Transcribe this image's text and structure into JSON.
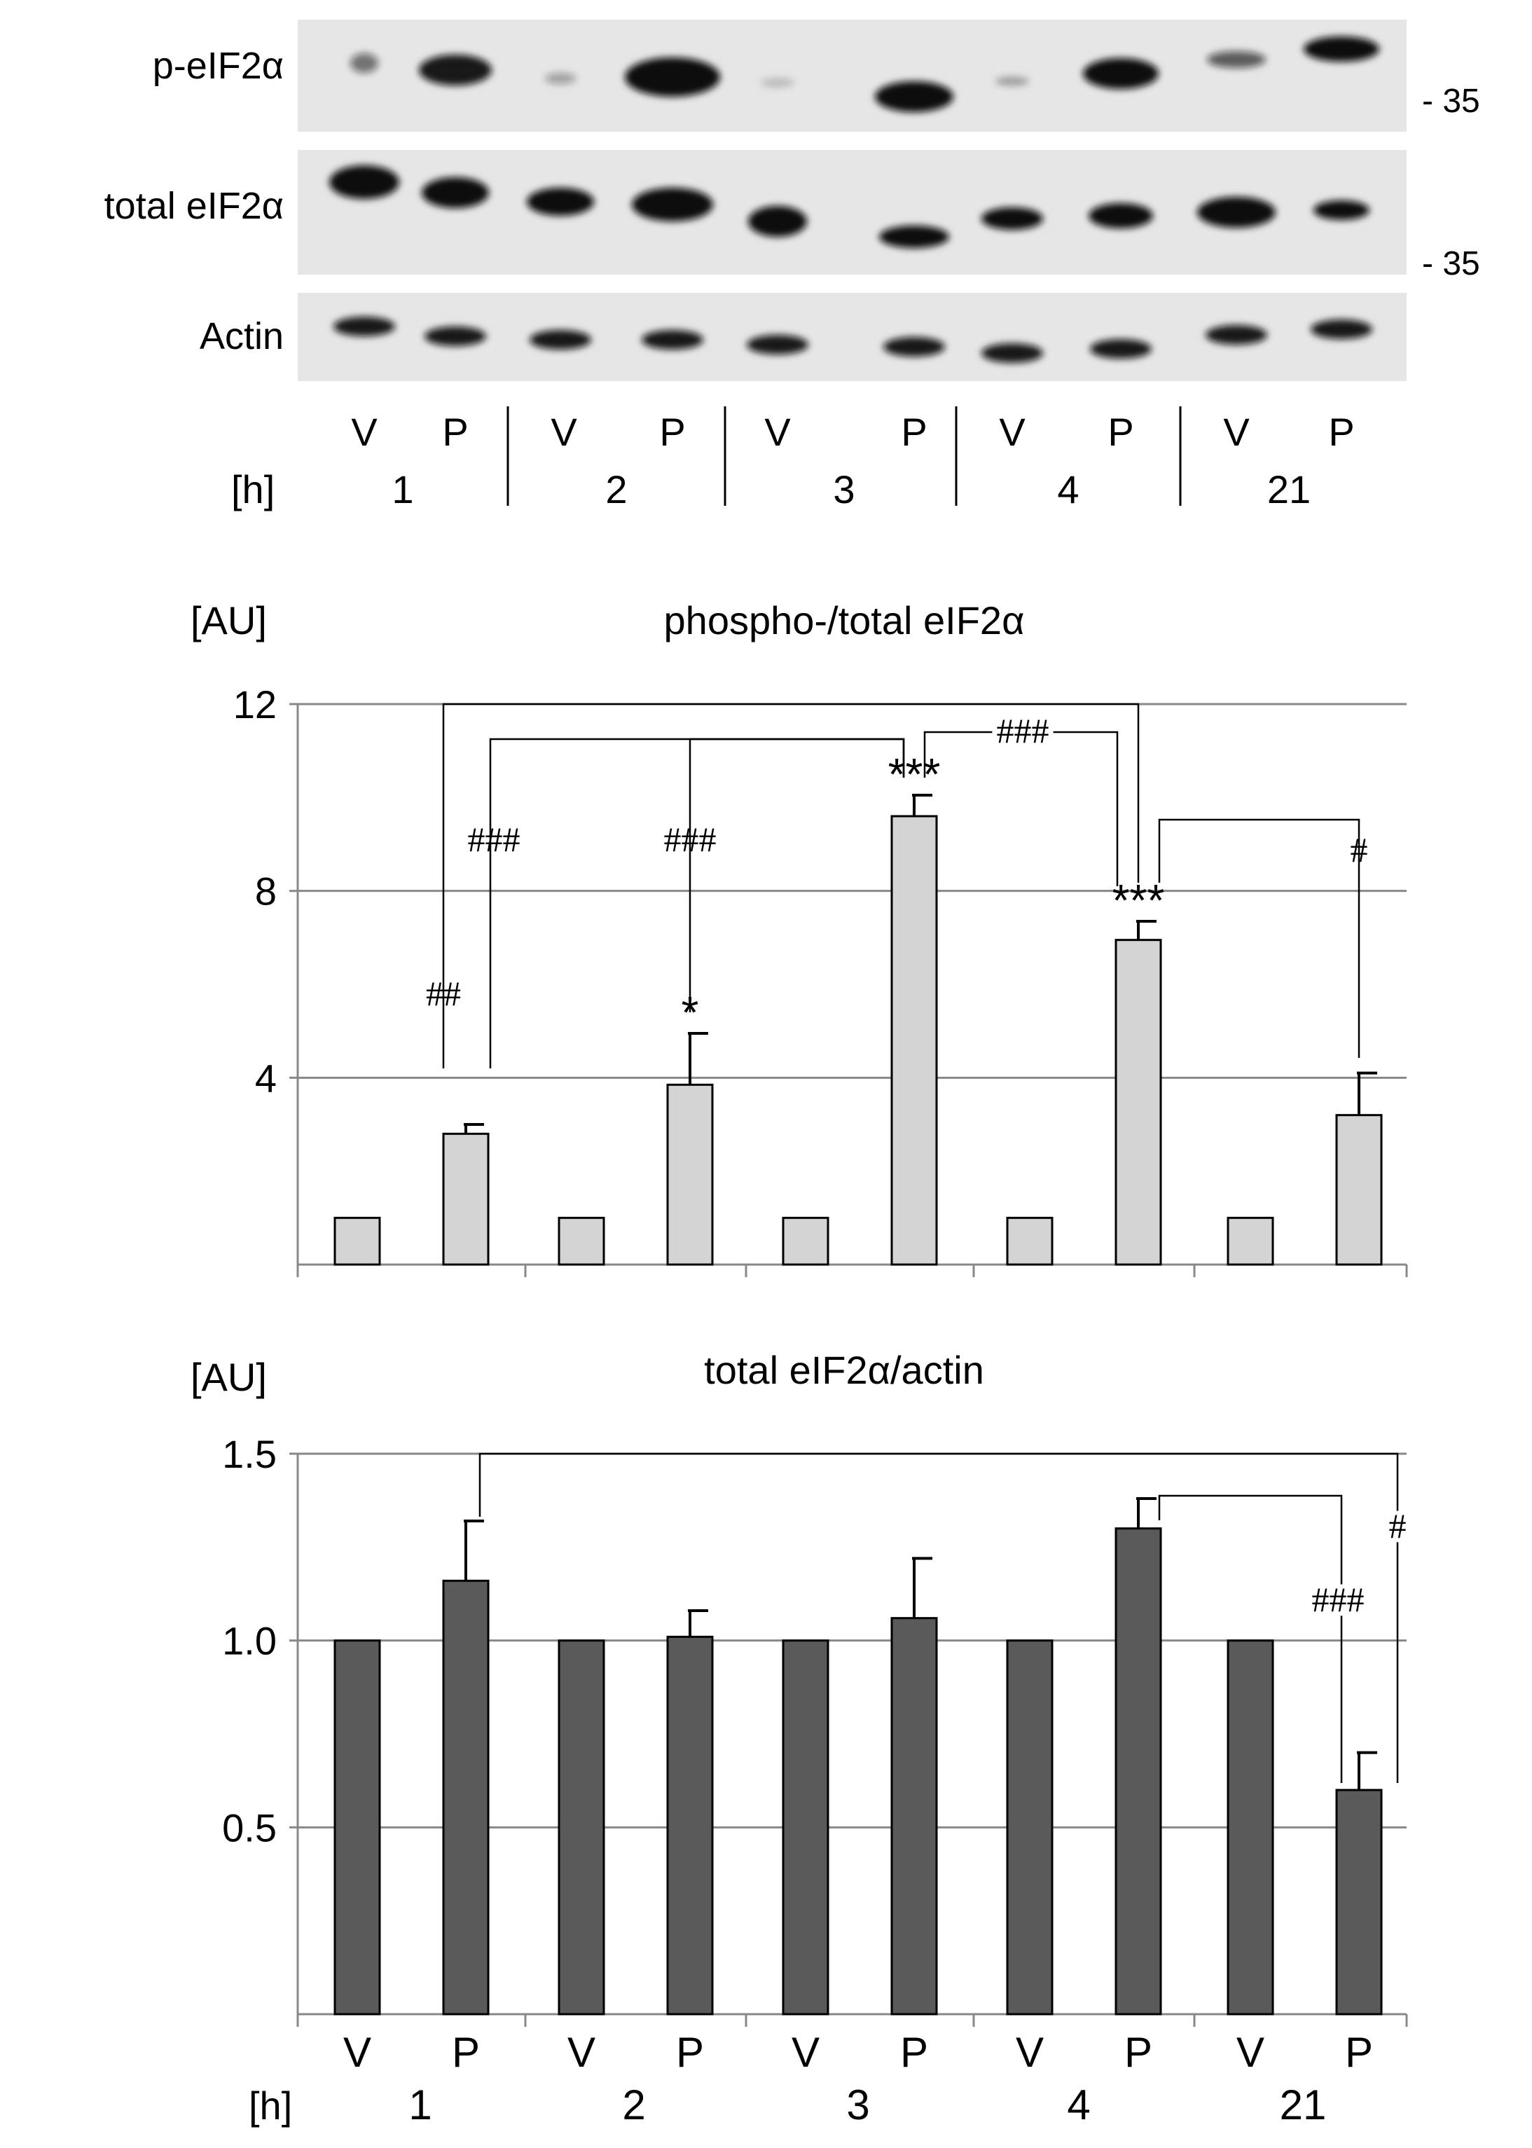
{
  "blot": {
    "rows": [
      {
        "label": "p-eIF2α",
        "marker": "- 35"
      },
      {
        "label": "total eIF2α",
        "marker": "- 35"
      },
      {
        "label": "Actin",
        "marker": ""
      }
    ],
    "conditions": [
      "V",
      "P",
      "V",
      "P",
      "V",
      "P",
      "V",
      "P",
      "V",
      "P"
    ],
    "time_unit": "[h]",
    "timepoints": [
      "1",
      "2",
      "3",
      "4",
      "21"
    ]
  },
  "chart_data": [
    {
      "type": "bar",
      "title": "phospho-/total eIF2α",
      "ylabel": "[AU]",
      "ylim": [
        0,
        12
      ],
      "yticks": [
        "4",
        "8",
        "12"
      ],
      "ytick_values": [
        4,
        8,
        12
      ],
      "grid": true,
      "bar_color": "#d4d4d4",
      "categories": [
        "V",
        "P",
        "V",
        "P",
        "V",
        "P",
        "V",
        "P",
        "V",
        "P"
      ],
      "values": [
        1.0,
        2.8,
        1.0,
        3.85,
        1.0,
        9.6,
        1.0,
        6.95,
        1.0,
        3.2
      ],
      "errors": [
        0,
        0.2,
        0,
        1.1,
        0,
        0.45,
        0,
        0.4,
        0,
        0.9
      ],
      "annotations": [
        {
          "bar": 3,
          "text": "*"
        },
        {
          "bar": 5,
          "text": "***"
        },
        {
          "bar": 7,
          "text": "***"
        }
      ],
      "brackets": [
        {
          "from": 0,
          "to": 7,
          "label": "##",
          "label_at": "from"
        },
        {
          "from": 1,
          "to": 5,
          "label": "###",
          "label_at": "from"
        },
        {
          "from": 3,
          "to": 5,
          "label": "###",
          "label_at": "from"
        },
        {
          "from": 5,
          "to": 7,
          "label": "###",
          "label_at": "middle"
        },
        {
          "from": 7,
          "to": 9,
          "label": "#",
          "label_at": "to"
        }
      ]
    },
    {
      "type": "bar",
      "title": "total eIF2α/actin",
      "ylabel": "[AU]",
      "ylim": [
        0,
        1.5
      ],
      "yticks": [
        "0.5",
        "1.0",
        "1.5"
      ],
      "ytick_values": [
        0.5,
        1.0,
        1.5
      ],
      "grid": true,
      "bar_color": "#5a5a5a",
      "categories": [
        "V",
        "P",
        "V",
        "P",
        "V",
        "P",
        "V",
        "P",
        "V",
        "P"
      ],
      "xlabel_unit": "[h]",
      "timepoints": [
        "1",
        "2",
        "3",
        "4",
        "21"
      ],
      "values": [
        1.0,
        1.16,
        1.0,
        1.01,
        1.0,
        1.06,
        1.0,
        1.3,
        1.0,
        0.6
      ],
      "errors": [
        0,
        0.16,
        0,
        0.07,
        0,
        0.16,
        0,
        0.08,
        0,
        0.1
      ],
      "brackets": [
        {
          "from": 1,
          "to": 9,
          "label": "#",
          "label_at": "to"
        },
        {
          "from": 7,
          "to": 9,
          "label": "###",
          "label_at": "to"
        }
      ]
    }
  ]
}
